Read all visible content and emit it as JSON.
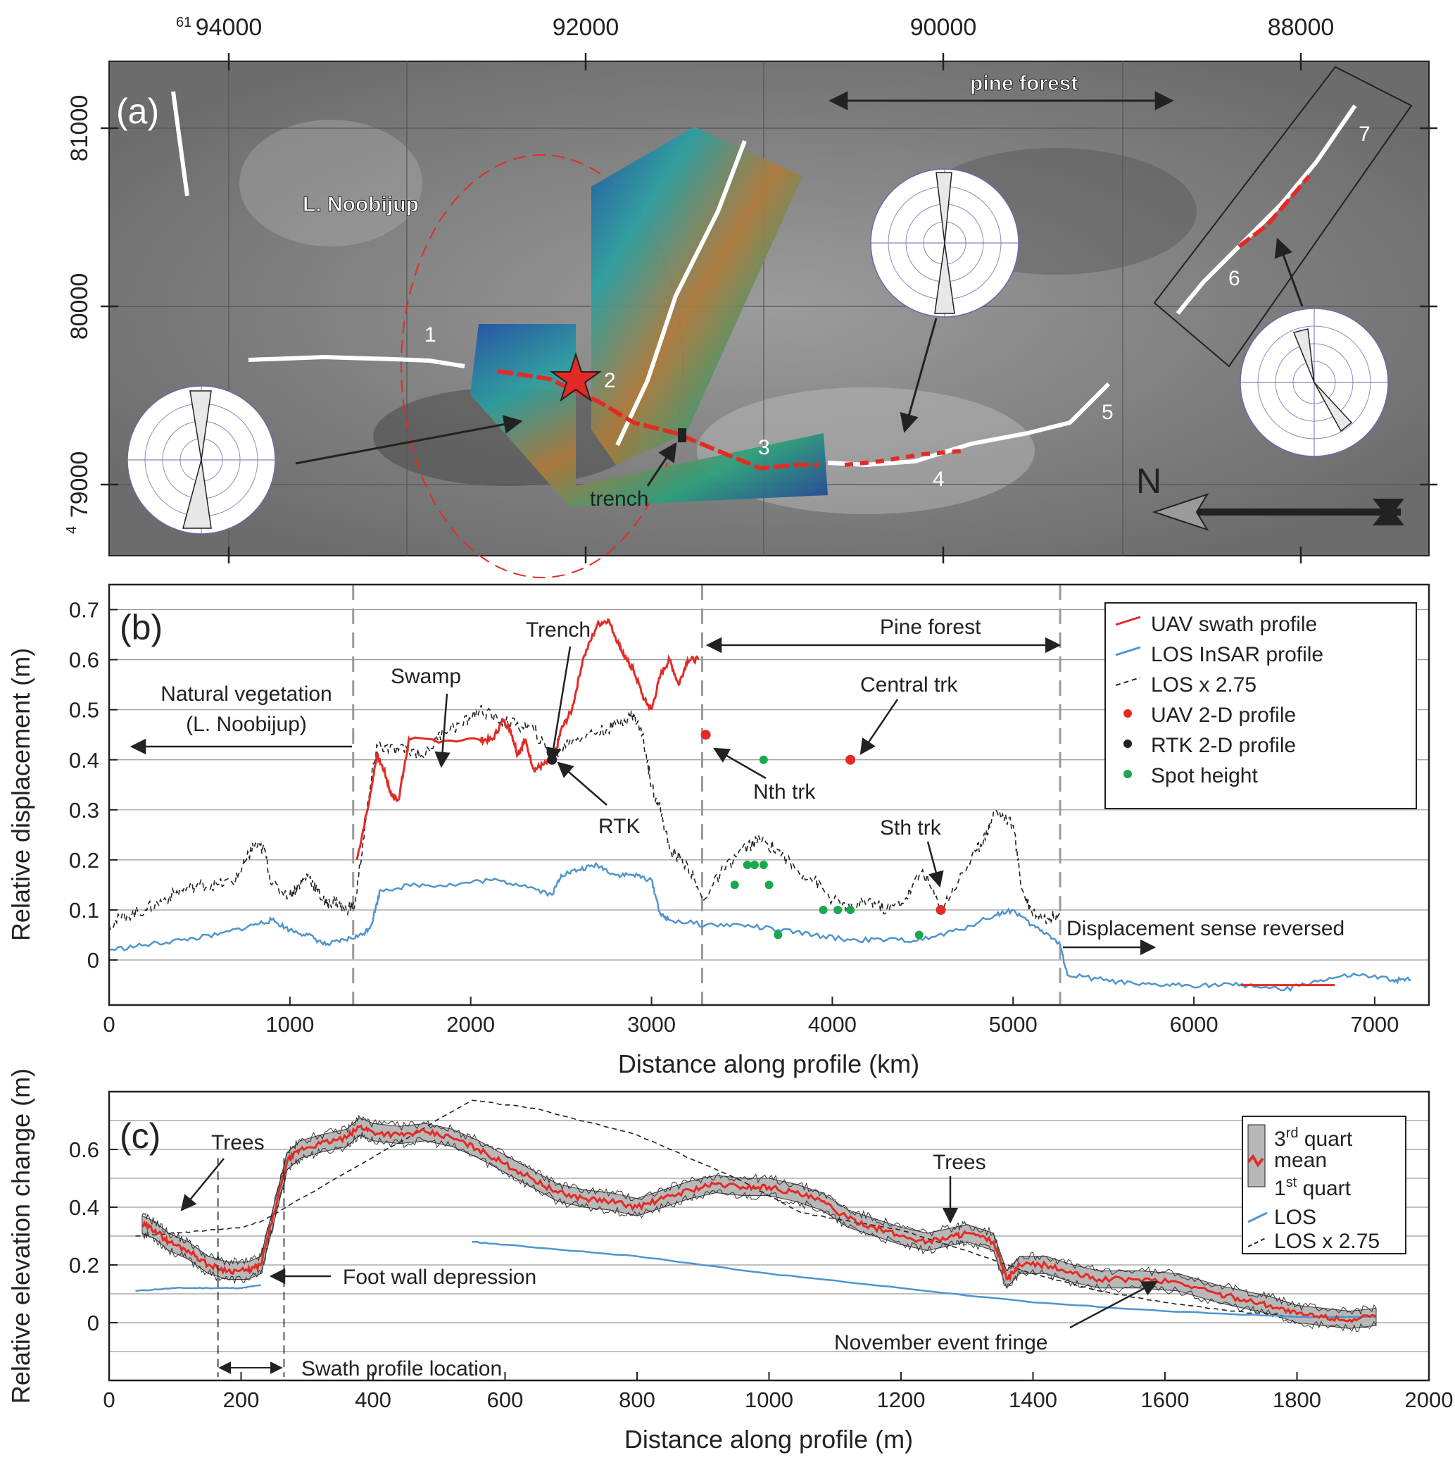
{
  "colors": {
    "uav": "#e32b25",
    "los": "#4e95cf",
    "los_scaled": "#222222",
    "rtk": "#222222",
    "spot": "#1aa84f",
    "quartile_band": "#b8b8b8",
    "grid": "#9a9a9a",
    "dashed_marker": "#9a9a9a",
    "map_background": "#8a8a8a",
    "trace": "#ffffff"
  },
  "map": {
    "panel_label": "(a)",
    "top_easting_labels": [
      "94000",
      "92000",
      "90000",
      "88000"
    ],
    "easting_superscript": "61",
    "left_northing_labels": [
      "81000",
      "80000",
      "79000"
    ],
    "northing_superscript": "4",
    "place_label": "L. Noobijup",
    "forest_label": "pine forest",
    "trench_label": "trench",
    "north_label": "N",
    "segment_numbers": [
      "1",
      "2",
      "3",
      "4",
      "5",
      "6",
      "7"
    ],
    "icons": [
      "star-icon",
      "north-arrow-icon",
      "rose-diagram-icon"
    ]
  },
  "chart_data": [
    {
      "type": "line",
      "panel_label": "(b)",
      "xlabel": "Distance along profile (km)",
      "ylabel": "Relative displacement (m)",
      "xlim": [
        0,
        7300
      ],
      "ylim": [
        -0.09,
        0.75
      ],
      "xticks": [
        0,
        1000,
        2000,
        3000,
        4000,
        5000,
        6000,
        7000
      ],
      "yticks": [
        0,
        0.1,
        0.2,
        0.3,
        0.4,
        0.5,
        0.6,
        0.7
      ],
      "ytick_labels": [
        "0",
        "0.1",
        "0.2",
        "0.3",
        "0.4",
        "0.5",
        "0.6",
        "0.7"
      ],
      "grid": true,
      "legend_position": "top-right",
      "region_boundaries": [
        1350,
        3280,
        5260
      ],
      "series": [
        {
          "name": "UAV swath profile",
          "style": "line",
          "x": [
            1370,
            1440,
            1480,
            1520,
            1560,
            1600,
            1640,
            1660,
            2050,
            2120,
            2180,
            2220,
            2260,
            2300,
            2350,
            2400,
            2460,
            2500,
            2560,
            2620,
            2700,
            2760,
            2820,
            2860,
            2900,
            2960,
            3000,
            3050,
            3100,
            3150,
            3200,
            3260
          ],
          "y": [
            0.2,
            0.32,
            0.41,
            0.38,
            0.33,
            0.32,
            0.4,
            0.44,
            0.44,
            0.44,
            0.48,
            0.46,
            0.41,
            0.44,
            0.38,
            0.39,
            0.4,
            0.46,
            0.5,
            0.6,
            0.67,
            0.68,
            0.63,
            0.6,
            0.58,
            0.52,
            0.5,
            0.57,
            0.6,
            0.55,
            0.6,
            0.6
          ]
        },
        {
          "name": "",
          "style": "line",
          "x": [
            6260,
            6780
          ],
          "y": [
            -0.05,
            -0.05
          ]
        },
        {
          "name": "LOS InSAR profile",
          "style": "line",
          "x": [
            0,
            200,
            400,
            600,
            800,
            900,
            1000,
            1100,
            1200,
            1300,
            1400,
            1450,
            1500,
            1700,
            1900,
            2100,
            2300,
            2450,
            2500,
            2600,
            2700,
            2800,
            2900,
            3000,
            3050,
            3100,
            3300,
            3500,
            3700,
            3900,
            4100,
            4300,
            4500,
            4700,
            4900,
            5000,
            5100,
            5200,
            5260,
            5300,
            5500,
            5700,
            5900,
            6100,
            6300,
            6500,
            6700,
            6900,
            7100,
            7200
          ],
          "y": [
            0.02,
            0.03,
            0.04,
            0.05,
            0.07,
            0.08,
            0.06,
            0.05,
            0.03,
            0.04,
            0.05,
            0.07,
            0.14,
            0.15,
            0.15,
            0.16,
            0.15,
            0.13,
            0.17,
            0.18,
            0.19,
            0.17,
            0.17,
            0.16,
            0.09,
            0.08,
            0.07,
            0.07,
            0.06,
            0.05,
            0.04,
            0.04,
            0.04,
            0.06,
            0.09,
            0.1,
            0.07,
            0.05,
            0.03,
            -0.03,
            -0.04,
            -0.05,
            -0.05,
            -0.05,
            -0.05,
            -0.06,
            -0.04,
            -0.03,
            -0.04,
            -0.04
          ]
        },
        {
          "name": "LOS x 2.75",
          "style": "dashed",
          "x": [
            0,
            100,
            200,
            300,
            400,
            500,
            600,
            700,
            760,
            800,
            860,
            900,
            1000,
            1050,
            1100,
            1150,
            1200,
            1250,
            1300,
            1360,
            1420,
            1480,
            1550,
            1650,
            1750,
            1850,
            1950,
            2050,
            2150,
            2250,
            2350,
            2450,
            2550,
            2650,
            2750,
            2850,
            2900,
            2950,
            3000,
            3050,
            3100,
            3200,
            3280,
            3400,
            3500,
            3600,
            3700,
            3800,
            3900,
            4000,
            4100,
            4200,
            4300,
            4400,
            4500,
            4600,
            4700,
            4800,
            4850,
            4900,
            5000,
            5050,
            5100,
            5200,
            5260
          ],
          "y": [
            0.07,
            0.09,
            0.1,
            0.12,
            0.14,
            0.15,
            0.15,
            0.16,
            0.2,
            0.23,
            0.22,
            0.15,
            0.13,
            0.15,
            0.17,
            0.14,
            0.11,
            0.12,
            0.1,
            0.11,
            0.28,
            0.43,
            0.42,
            0.42,
            0.41,
            0.46,
            0.47,
            0.5,
            0.48,
            0.47,
            0.46,
            0.4,
            0.44,
            0.45,
            0.46,
            0.48,
            0.49,
            0.45,
            0.35,
            0.3,
            0.22,
            0.19,
            0.12,
            0.18,
            0.22,
            0.24,
            0.22,
            0.18,
            0.16,
            0.12,
            0.1,
            0.12,
            0.1,
            0.12,
            0.18,
            0.1,
            0.16,
            0.22,
            0.25,
            0.3,
            0.27,
            0.14,
            0.1,
            0.08,
            0.1
          ]
        }
      ],
      "points": [
        {
          "name": "UAV 2-D profile",
          "x": [
            3300,
            4100,
            4600
          ],
          "y": [
            0.45,
            0.4,
            0.1
          ]
        },
        {
          "name": "RTK 2-D profile",
          "x": [
            2450
          ],
          "y": [
            0.4
          ]
        },
        {
          "name": "Spot height",
          "x": [
            3460,
            3530,
            3570,
            3620,
            3620,
            3650,
            3700,
            3950,
            4030,
            4100,
            4480
          ],
          "y": [
            0.15,
            0.19,
            0.19,
            0.19,
            0.4,
            0.15,
            0.05,
            0.1,
            0.1,
            0.1,
            0.05
          ]
        }
      ],
      "annotations": {
        "natural_vegetation": "Natural vegetation",
        "noobijup": "(L. Noobijup)",
        "swamp": "Swamp",
        "trench": "Trench",
        "pine_forest": "Pine forest",
        "central_trk": "Central trk",
        "nth_trk": "Nth trk",
        "rtk": "RTK",
        "sth_trk": "Sth trk",
        "displacement_reversed": "Displacement sense reversed"
      }
    },
    {
      "type": "line",
      "panel_label": "(c)",
      "xlabel": "Distance along profile (m)",
      "ylabel": "Relative elevation change (m)",
      "xlim": [
        0,
        2000
      ],
      "ylim": [
        -0.2,
        0.8
      ],
      "xticks": [
        0,
        200,
        400,
        600,
        800,
        1000,
        1200,
        1400,
        1600,
        1800,
        2000
      ],
      "yticks": [
        0,
        0.2,
        0.4,
        0.6
      ],
      "ytick_labels": [
        "0",
        "0.2",
        "0.4",
        "0.6"
      ],
      "grid": true,
      "legend_position": "top-right",
      "boundaries": [
        165,
        265
      ],
      "series": [
        {
          "name": "mean",
          "style": "line",
          "x": [
            50,
            70,
            90,
            120,
            150,
            180,
            210,
            230,
            250,
            270,
            290,
            320,
            360,
            380,
            400,
            440,
            480,
            520,
            560,
            600,
            640,
            680,
            720,
            760,
            800,
            840,
            880,
            920,
            960,
            1000,
            1040,
            1080,
            1120,
            1160,
            1200,
            1240,
            1280,
            1300,
            1340,
            1360,
            1380,
            1420,
            1460,
            1500,
            1560,
            1620,
            1680,
            1720,
            1760,
            1800,
            1840,
            1880,
            1920
          ],
          "y": [
            0.34,
            0.32,
            0.28,
            0.25,
            0.2,
            0.18,
            0.18,
            0.2,
            0.38,
            0.56,
            0.6,
            0.62,
            0.64,
            0.68,
            0.66,
            0.65,
            0.66,
            0.64,
            0.6,
            0.55,
            0.5,
            0.45,
            0.43,
            0.42,
            0.4,
            0.43,
            0.46,
            0.48,
            0.47,
            0.47,
            0.45,
            0.42,
            0.36,
            0.33,
            0.3,
            0.28,
            0.3,
            0.31,
            0.28,
            0.15,
            0.2,
            0.2,
            0.17,
            0.15,
            0.15,
            0.14,
            0.1,
            0.08,
            0.06,
            0.03,
            0.02,
            0.01,
            0.02
          ]
        },
        {
          "name": "LOS",
          "style": "line",
          "x": [
            40,
            100,
            150,
            200,
            230,
            550,
            600,
            800,
            1000,
            1200,
            1400,
            1600,
            1800,
            1920
          ],
          "y": [
            0.11,
            0.12,
            0.12,
            0.12,
            0.13,
            0.28,
            0.27,
            0.23,
            0.17,
            0.12,
            0.07,
            0.04,
            0.02,
            0.02
          ]
        },
        {
          "name": "LOS x 2.75",
          "style": "dashed",
          "x": [
            40,
            100,
            150,
            200,
            230,
            550,
            650,
            800,
            950,
            1050,
            1100,
            1200,
            1300,
            1400,
            1500,
            1600,
            1700,
            1800,
            1900
          ],
          "y": [
            0.3,
            0.31,
            0.32,
            0.33,
            0.35,
            0.77,
            0.74,
            0.65,
            0.5,
            0.38,
            0.36,
            0.32,
            0.25,
            0.17,
            0.11,
            0.07,
            0.04,
            0.02,
            0.02
          ]
        }
      ],
      "quartiles": {
        "third_quart_offset": 0.03,
        "first_quart_offset": -0.03
      },
      "annotations": {
        "trees_left": "Trees",
        "trees_right": "Trees",
        "foot_wall": "Foot wall depression",
        "swath_location": "Swath profile location",
        "november_fringe": "November event fringe"
      },
      "legend": {
        "third_quart_base": "3",
        "third_quart_sup": "rd",
        "third_quart_tail": " quart",
        "mean": "mean",
        "first_quart_base": "1",
        "first_quart_sup": "st",
        "first_quart_tail": " quart",
        "los": "LOS",
        "los_scaled": "LOS x 2.75"
      }
    }
  ]
}
